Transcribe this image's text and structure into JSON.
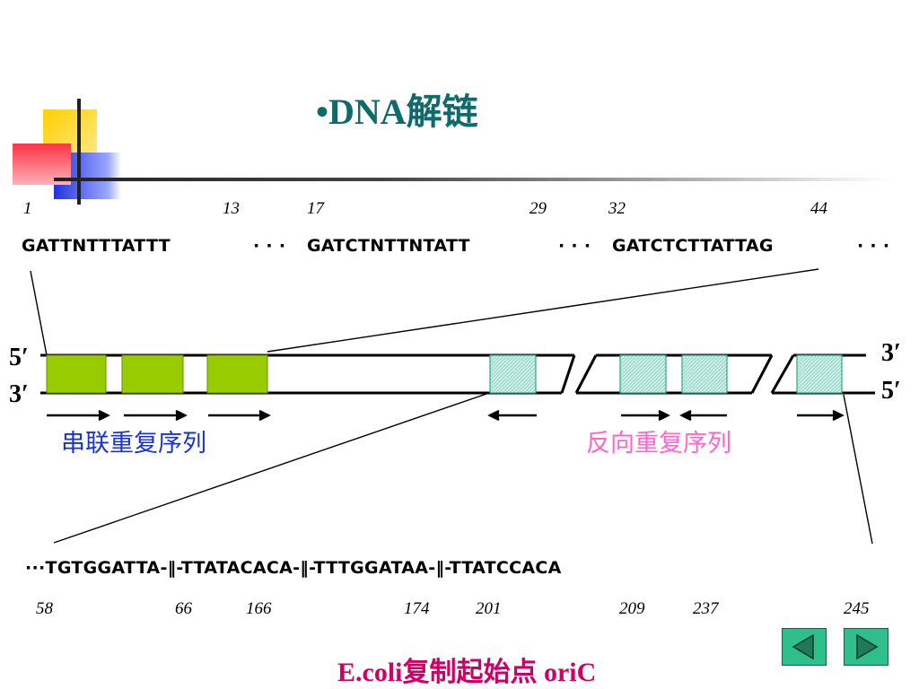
{
  "title": "•DNA解链",
  "top_numbers": [
    "1",
    "13",
    "17",
    "29",
    "32",
    "44"
  ],
  "top_sequence": [
    "GATTNTTTATTT",
    "· · ·",
    "GATCTNTTNTATT",
    "· · ·",
    "GATCTCTTATTAG",
    "· · ·"
  ],
  "strand_labels": {
    "left_top": "5′",
    "left_bottom": "3′",
    "right_top": "3′",
    "right_bottom": "5′"
  },
  "tandem_label": "串联重复序列",
  "inverted_label": "反向重复序列",
  "bottom_sequence": "···TGTGGATTA-‖-TTATACACA-‖-TTTGGATAA-‖-TTATCCACA",
  "bottom_numbers": [
    "58",
    "66",
    "166",
    "174",
    "201",
    "209",
    "237",
    "245"
  ],
  "caption": "E.coli复制起始点 oriC",
  "colors": {
    "title": "#0f6b6b",
    "tandem_box": "#99cc00",
    "inverted_box": "#a8dcd0",
    "tandem_label": "#1a33cc",
    "inverted_label": "#ff66cc",
    "caption": "#cc0066",
    "nav": "#2fbf8c"
  },
  "nav": {
    "prev": "triangle-left-icon",
    "next": "triangle-right-icon"
  }
}
